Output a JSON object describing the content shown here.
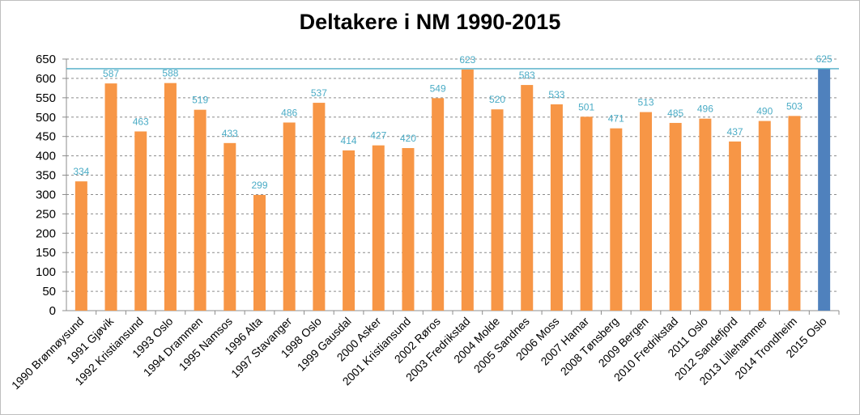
{
  "chart_data": {
    "type": "bar",
    "title": "Deltakere i NM 1990-2015",
    "categories": [
      "1990 Brønnøysund",
      "1991 Gjøvik",
      "1992 Kristiansund",
      "1993 Oslo",
      "1994 Drammen",
      "1995 Namsos",
      "1996 Alta",
      "1997 Stavanger",
      "1998 Oslo",
      "1999 Gausdal",
      "2000 Asker",
      "2001 Kristiansund",
      "2002 Røros",
      "2003 Fredrikstad",
      "2004 Molde",
      "2005 Sandnes",
      "2006 Moss",
      "2007 Hamar",
      "2008 Tønsberg",
      "2009 Bergen",
      "2010 Fredrikstad",
      "2011 Oslo",
      "2012 Sandefjord",
      "2013 Lillehammer",
      "2014 Trondheim",
      "2015 Oslo"
    ],
    "values": [
      334,
      587,
      463,
      588,
      519,
      433,
      299,
      486,
      537,
      414,
      427,
      420,
      549,
      623,
      520,
      583,
      533,
      501,
      471,
      513,
      485,
      496,
      437,
      490,
      503,
      625
    ],
    "ylim": [
      0,
      650
    ],
    "yticks": [
      0,
      50,
      100,
      150,
      200,
      250,
      300,
      350,
      400,
      450,
      500,
      550,
      600,
      650
    ],
    "reference_line": 625,
    "grid": true,
    "bar_color": "#F79646",
    "highlight_color": "#4F81BD",
    "highlight_index": 25,
    "label_color": "#4BACC6",
    "reference_line_color": "#4BACC6",
    "xlabel": "",
    "ylabel": ""
  }
}
